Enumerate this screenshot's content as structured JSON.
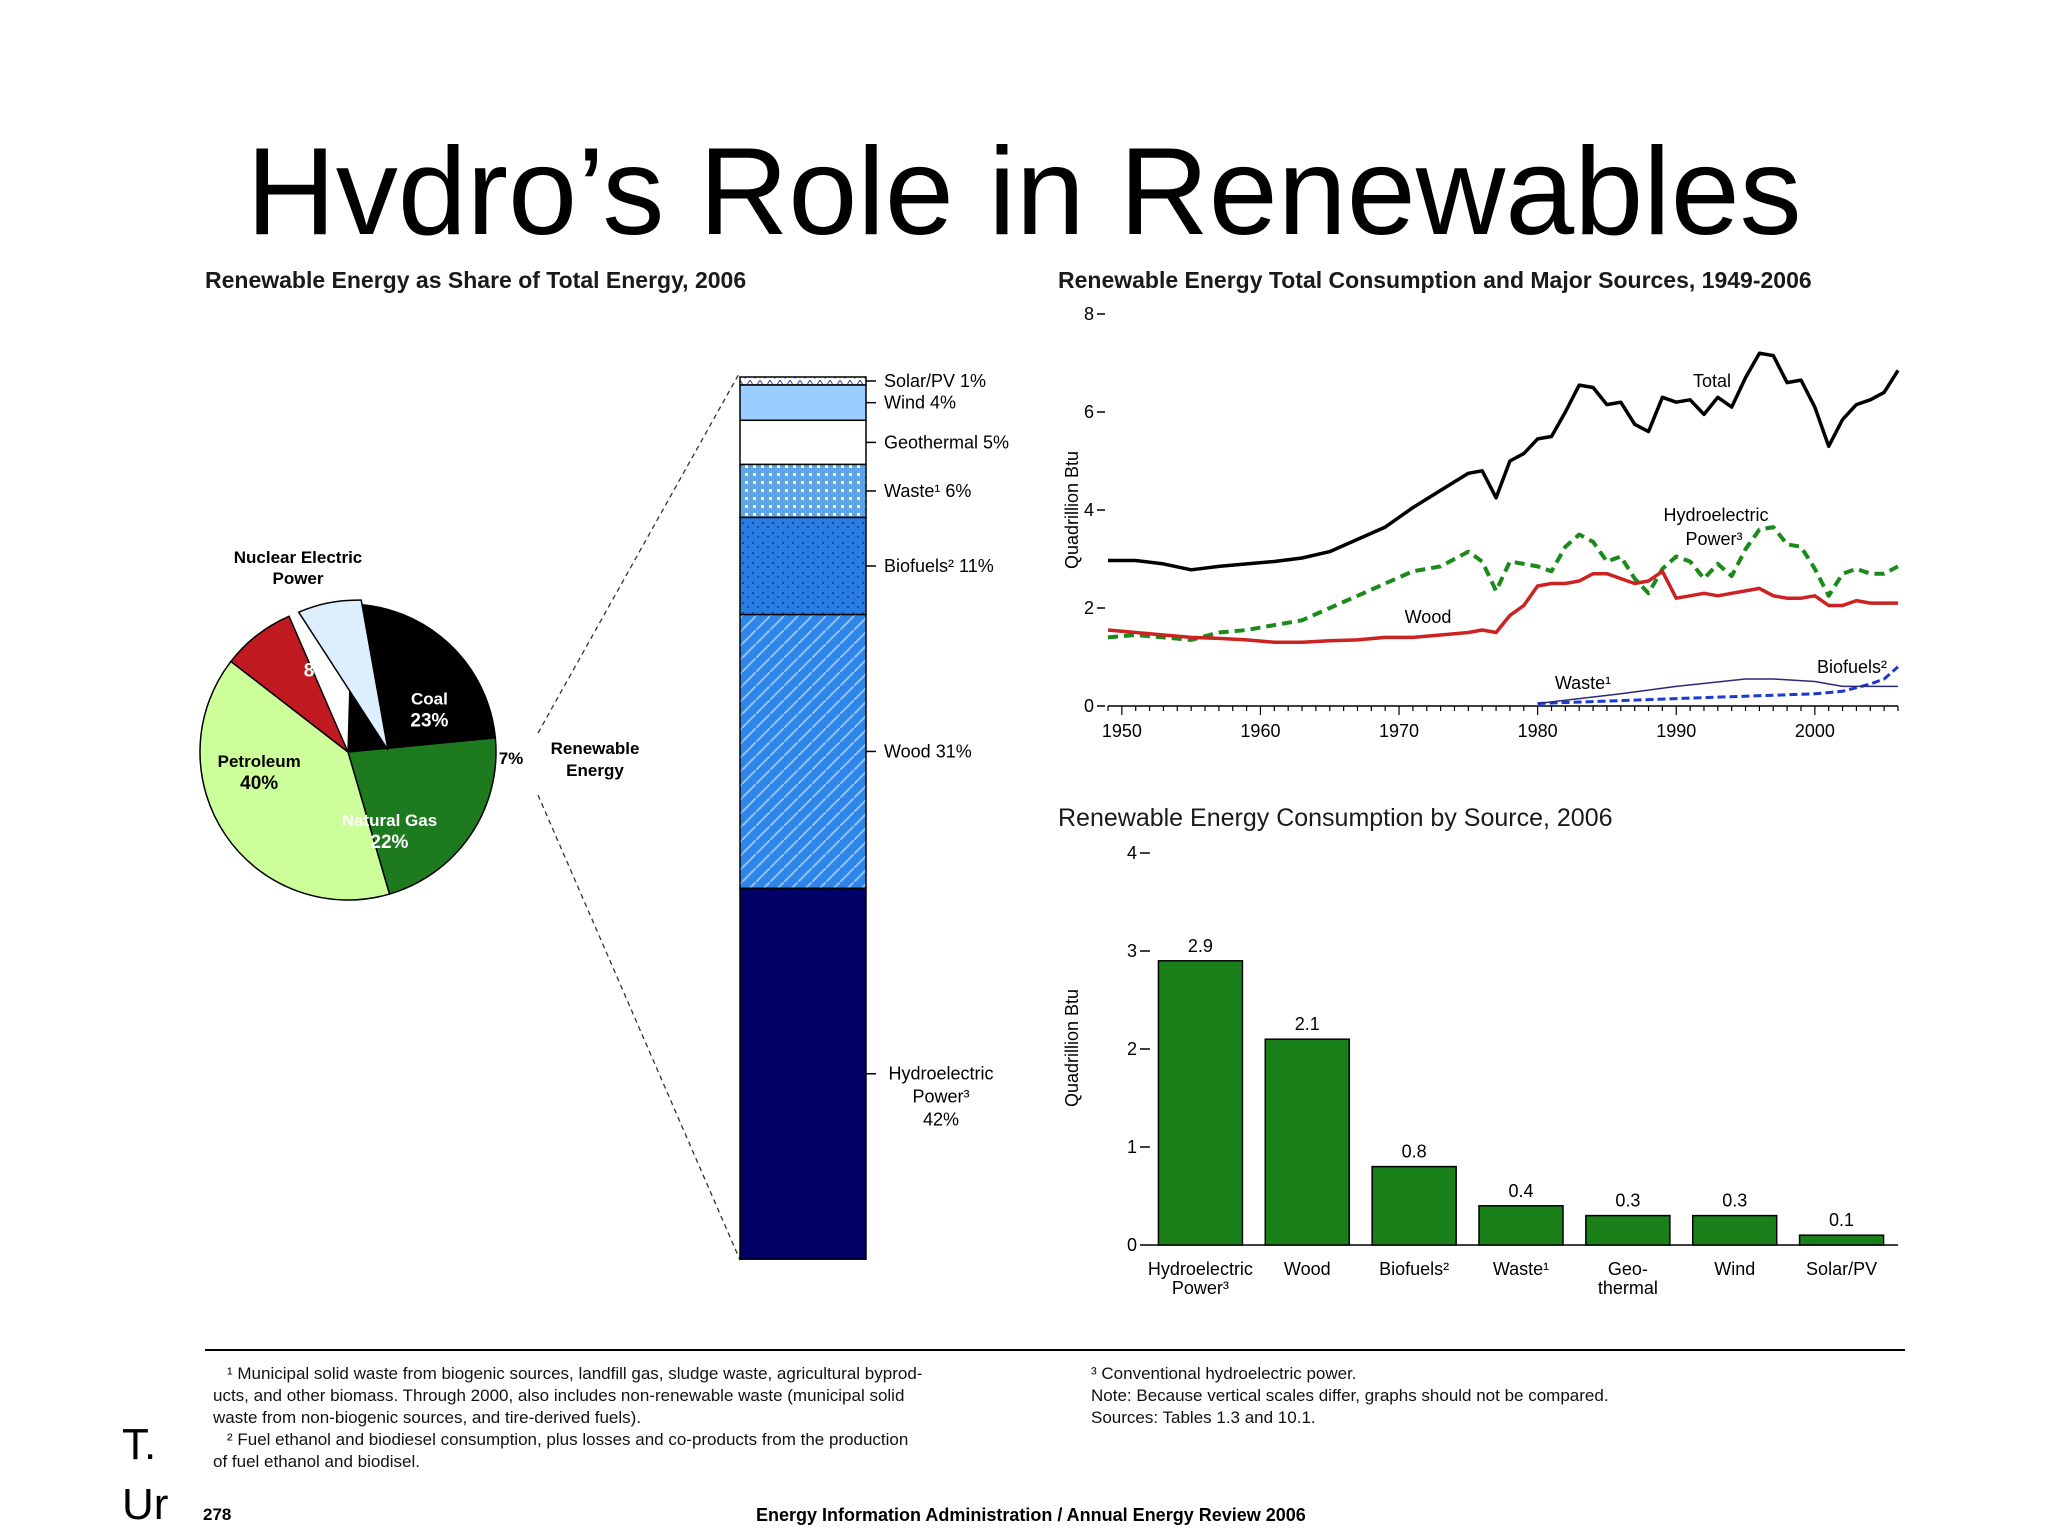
{
  "slide": {
    "title": "Hvdro’s Role in Renewables",
    "bottom_left_1": "T.",
    "bottom_left_2": "Ur"
  },
  "chart_data": [
    {
      "type": "pie",
      "title": "Renewable Energy as Share of Total Energy, 2006",
      "slices": [
        {
          "label": "Coal",
          "value": 23,
          "text": "23%",
          "color": "#000000"
        },
        {
          "label": "Natural Gas",
          "value": 22,
          "text": "22%",
          "color": "#1e7a1e"
        },
        {
          "label": "Petroleum",
          "value": 40,
          "text": "40%",
          "color": "#ccff99"
        },
        {
          "label": "Nuclear Electric Power",
          "value": 8,
          "text": "8%",
          "color": "#c0191f"
        },
        {
          "label": "Renewable Energy",
          "value": 7,
          "text": "7%",
          "color": "#ddeeff"
        }
      ],
      "breakdown": [
        {
          "label": "Solar/PV 1%",
          "value": 1
        },
        {
          "label": "Wind 4%",
          "value": 4
        },
        {
          "label": "Geothermal 5%",
          "value": 5
        },
        {
          "label": "Waste¹ 6%",
          "value": 6
        },
        {
          "label": "Biofuels² 11%",
          "value": 11
        },
        {
          "label": "Wood 31%",
          "value": 31
        },
        {
          "label": "Hydroelectric Power³ 42%",
          "value": 42,
          "lines": [
            "Hydroelectric",
            "Power³",
            "42%"
          ]
        }
      ]
    },
    {
      "type": "line",
      "title": "Renewable Energy Total Consumption and Major Sources, 1949-2006",
      "ylabel": "Quadrillion Btu",
      "xlim": [
        1949,
        2006
      ],
      "ylim": [
        0,
        8
      ],
      "xticks": [
        "1950",
        "1960",
        "1970",
        "1980",
        "1990",
        "2000"
      ],
      "yticks": [
        "0",
        "2",
        "4",
        "6",
        "8"
      ],
      "series": [
        {
          "name": "Total",
          "color": "#000000",
          "x": [
            1949,
            1951,
            1953,
            1955,
            1957,
            1959,
            1961,
            1963,
            1965,
            1967,
            1969,
            1971,
            1973,
            1975,
            1976,
            1977,
            1978,
            1979,
            1980,
            1981,
            1982,
            1983,
            1984,
            1985,
            1986,
            1987,
            1988,
            1989,
            1990,
            1991,
            1992,
            1993,
            1994,
            1995,
            1996,
            1997,
            1998,
            1999,
            2000,
            2001,
            2002,
            2003,
            2004,
            2005,
            2006
          ],
          "y": [
            2.97,
            2.97,
            2.9,
            2.78,
            2.85,
            2.9,
            2.95,
            3.02,
            3.15,
            3.4,
            3.65,
            4.05,
            4.4,
            4.75,
            4.8,
            4.25,
            5.0,
            5.15,
            5.45,
            5.5,
            6.0,
            6.55,
            6.5,
            6.15,
            6.2,
            5.75,
            5.6,
            6.3,
            6.2,
            6.25,
            5.95,
            6.3,
            6.1,
            6.7,
            7.2,
            7.15,
            6.6,
            6.65,
            6.1,
            5.3,
            5.85,
            6.15,
            6.25,
            6.4,
            6.85
          ]
        },
        {
          "name": "Hydroelectric Power³",
          "color": "#1a8a1a",
          "x": [
            1949,
            1951,
            1953,
            1955,
            1957,
            1959,
            1961,
            1963,
            1965,
            1967,
            1969,
            1971,
            1973,
            1975,
            1976,
            1977,
            1978,
            1979,
            1980,
            1981,
            1982,
            1983,
            1984,
            1985,
            1986,
            1987,
            1988,
            1989,
            1990,
            1991,
            1992,
            1993,
            1994,
            1995,
            1996,
            1997,
            1998,
            1999,
            2000,
            2001,
            2002,
            2003,
            2004,
            2005,
            2006
          ],
          "y": [
            1.4,
            1.45,
            1.4,
            1.35,
            1.5,
            1.55,
            1.65,
            1.75,
            2.0,
            2.25,
            2.5,
            2.75,
            2.85,
            3.15,
            2.95,
            2.35,
            2.95,
            2.9,
            2.85,
            2.75,
            3.25,
            3.5,
            3.35,
            2.95,
            3.05,
            2.6,
            2.3,
            2.8,
            3.05,
            2.95,
            2.6,
            2.9,
            2.65,
            3.2,
            3.6,
            3.65,
            3.3,
            3.25,
            2.8,
            2.25,
            2.7,
            2.8,
            2.7,
            2.7,
            2.85
          ]
        },
        {
          "name": "Wood",
          "color": "#cc2222",
          "x": [
            1949,
            1951,
            1953,
            1955,
            1957,
            1959,
            1961,
            1963,
            1965,
            1967,
            1969,
            1971,
            1973,
            1975,
            1976,
            1977,
            1978,
            1979,
            1980,
            1981,
            1982,
            1983,
            1984,
            1985,
            1986,
            1987,
            1988,
            1989,
            1990,
            1991,
            1992,
            1993,
            1994,
            1995,
            1996,
            1997,
            1998,
            1999,
            2000,
            2001,
            2002,
            2003,
            2004,
            2005,
            2006
          ],
          "y": [
            1.55,
            1.5,
            1.45,
            1.4,
            1.38,
            1.35,
            1.3,
            1.3,
            1.33,
            1.35,
            1.4,
            1.4,
            1.45,
            1.5,
            1.55,
            1.5,
            1.85,
            2.05,
            2.45,
            2.5,
            2.5,
            2.55,
            2.7,
            2.7,
            2.6,
            2.5,
            2.55,
            2.75,
            2.2,
            2.25,
            2.3,
            2.25,
            2.3,
            2.35,
            2.4,
            2.25,
            2.2,
            2.2,
            2.25,
            2.05,
            2.05,
            2.15,
            2.1,
            2.1,
            2.1
          ]
        },
        {
          "name": "Biofuels²",
          "color": "#1a3ad0",
          "x": [
            1980,
            1985,
            1990,
            1995,
            2000,
            2002,
            2004,
            2005,
            2006
          ],
          "y": [
            0.05,
            0.1,
            0.15,
            0.2,
            0.25,
            0.3,
            0.45,
            0.55,
            0.8
          ]
        },
        {
          "name": "Waste¹",
          "color": "#2a2a7a",
          "x": [
            1980,
            1983,
            1986,
            1990,
            1995,
            1997,
            2000,
            2002,
            2004,
            2006
          ],
          "y": [
            0.05,
            0.15,
            0.25,
            0.4,
            0.55,
            0.55,
            0.5,
            0.4,
            0.4,
            0.4
          ]
        }
      ]
    },
    {
      "type": "bar",
      "title": "Renewable Energy Consumption by Source, 2006",
      "ylabel": "Quadrillion Btu",
      "ylim": [
        0,
        4
      ],
      "yticks": [
        "0",
        "1",
        "2",
        "3",
        "4"
      ],
      "color": "#1a801a",
      "categories": [
        "Hydroelectric Power³",
        "Wood",
        "Biofuels²",
        "Waste¹",
        "Geo-thermal",
        "Wind",
        "Solar/PV"
      ],
      "category_lines": [
        [
          "Hydroelectric",
          "Power³"
        ],
        [
          "Wood"
        ],
        [
          "Biofuels²"
        ],
        [
          "Waste¹"
        ],
        [
          "Geo-",
          "thermal"
        ],
        [
          "Wind"
        ],
        [
          "Solar/PV"
        ]
      ],
      "values": [
        2.9,
        2.1,
        0.8,
        0.4,
        0.3,
        0.3,
        0.1
      ],
      "value_labels": [
        "2.9",
        "2.1",
        "0.8",
        "0.4",
        "0.3",
        "0.3",
        "0.1"
      ]
    }
  ],
  "footnotes": {
    "left": [
      "¹ Municipal solid waste from biogenic sources, landfill gas, sludge waste, agricultural byprod-",
      "ucts, and other biomass.  Through 2000, also includes non-renewable waste (municipal solid",
      "waste from non-biogenic sources, and tire-derived fuels).",
      "² Fuel ethanol and biodiesel consumption, plus losses and co-products from the production",
      "of fuel ethanol and biodisel."
    ],
    "right": [
      "³ Conventional hydroelectric power.",
      "Note:  Because vertical scales differ, graphs should not be compared.",
      "Sources:  Tables 1.3 and 10.1."
    ]
  },
  "page_number": "278",
  "source_line": "Energy Information Administration / Annual Energy Review 2006"
}
